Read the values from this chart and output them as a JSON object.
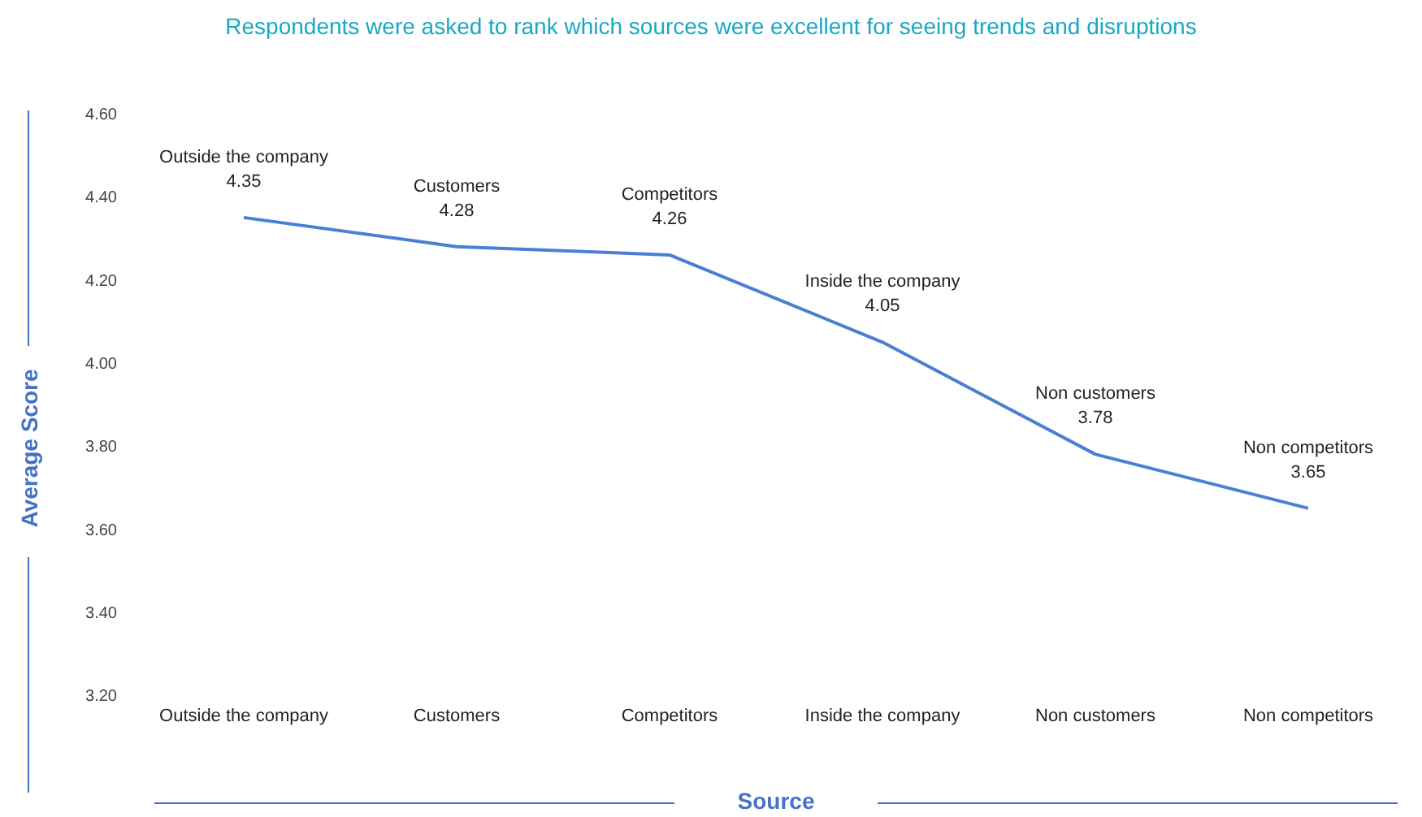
{
  "chart_data": {
    "type": "line",
    "title": "Respondents were asked to rank which sources were excellent for seeing trends and disruptions",
    "xlabel": "Source",
    "ylabel": "Average Score",
    "categories": [
      "Outside the company",
      "Customers",
      "Competitors",
      "Inside the company",
      "Non customers",
      "Non competitors"
    ],
    "series": [
      {
        "color": "#4a7fd4",
        "values": [
          4.35,
          4.28,
          4.26,
          4.05,
          3.78,
          3.65
        ]
      }
    ],
    "ylim": [
      3.2,
      4.6
    ],
    "yticks": [
      {
        "value": 3.2,
        "label": "3.20"
      },
      {
        "value": 3.4,
        "label": "3.40"
      },
      {
        "value": 3.6,
        "label": "3.60"
      },
      {
        "value": 3.8,
        "label": "3.80"
      },
      {
        "value": 4.0,
        "label": "4.00"
      },
      {
        "value": 4.2,
        "label": "4.20"
      },
      {
        "value": 4.4,
        "label": "4.40"
      },
      {
        "value": 4.6,
        "label": "4.60"
      }
    ],
    "data_labels": true,
    "grid": false,
    "legend": false,
    "marker": "none",
    "line_style": "solid"
  }
}
